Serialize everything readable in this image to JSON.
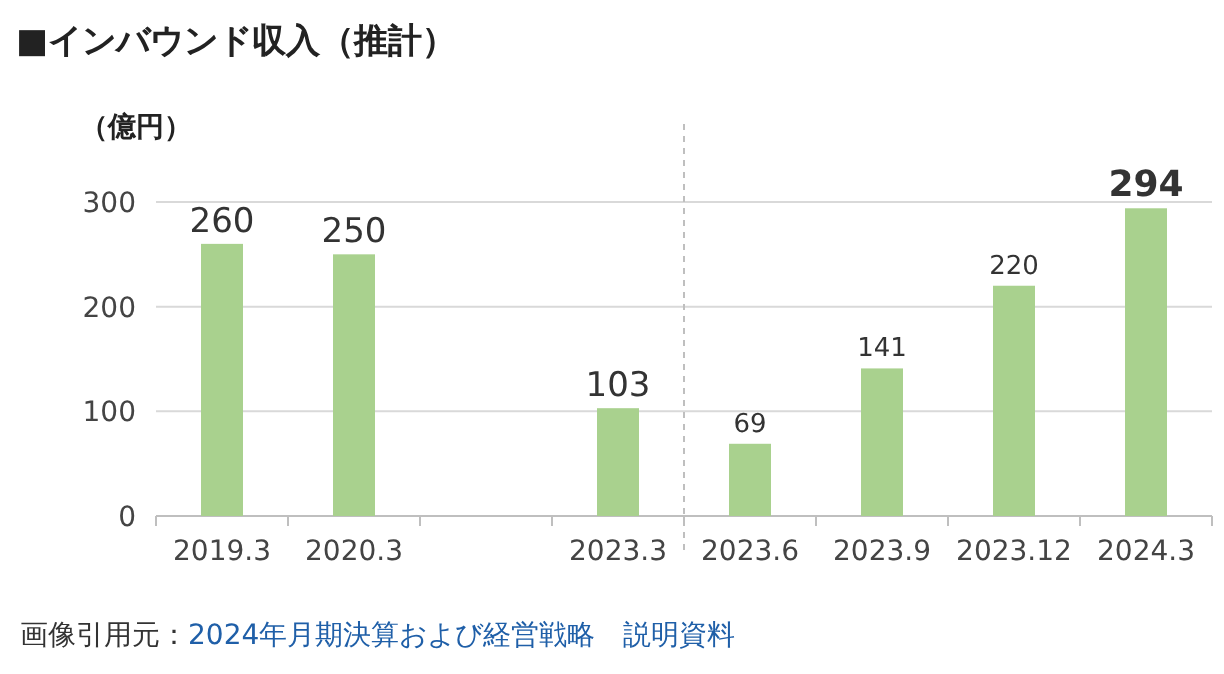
{
  "chart_data": {
    "type": "bar",
    "title": "■インバウンド収入（推計）",
    "ylabel": "（億円）",
    "categories": [
      "2019.3",
      "2020.3",
      null,
      "2023.3",
      "2023.6",
      "2023.9",
      "2023.12",
      "2024.3"
    ],
    "values": [
      260,
      250,
      null,
      103,
      69,
      141,
      220,
      294
    ],
    "color": "#a9d18e",
    "ylim": [
      0,
      300
    ],
    "yticks": [
      0,
      100,
      200,
      300
    ],
    "grid": "y",
    "data_labels": true,
    "annotations": [
      "画像引用元：2024年月期決算および経営戦略　説明資料"
    ]
  }
}
